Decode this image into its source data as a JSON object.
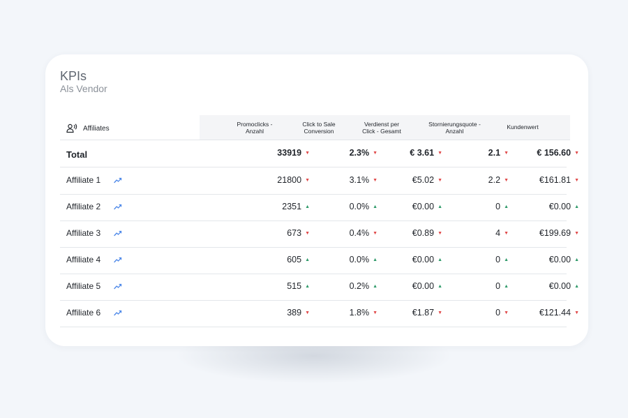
{
  "panel": {
    "title": "KPIs",
    "subtitle": "Als Vendor"
  },
  "table": {
    "first_column_label": "Affiliates",
    "columns": [
      {
        "line1": "Promoclicks -",
        "line2": "Anzahl"
      },
      {
        "line1": "Click to Sale",
        "line2": "Conversion"
      },
      {
        "line1": "Verdienst per",
        "line2": "Click - Gesamt"
      },
      {
        "line1": "Stornierungsquote -",
        "line2": "Anzahl"
      },
      {
        "line1": "Kundenwert",
        "line2": ""
      }
    ],
    "rows": [
      {
        "name": "Total",
        "total": true,
        "cells": [
          {
            "value": "33919",
            "trend": "down"
          },
          {
            "value": "2.3%",
            "trend": "down"
          },
          {
            "value": "€ 3.61",
            "trend": "down"
          },
          {
            "value": "2.1",
            "trend": "down"
          },
          {
            "value": "€ 156.60",
            "trend": "down"
          }
        ]
      },
      {
        "name": "Affiliate 1",
        "cells": [
          {
            "value": "21800",
            "trend": "down"
          },
          {
            "value": "3.1%",
            "trend": "down"
          },
          {
            "value": "€5.02",
            "trend": "down"
          },
          {
            "value": "2.2",
            "trend": "down"
          },
          {
            "value": "€161.81",
            "trend": "down"
          }
        ]
      },
      {
        "name": "Affiliate 2",
        "cells": [
          {
            "value": "2351",
            "trend": "up"
          },
          {
            "value": "0.0%",
            "trend": "up"
          },
          {
            "value": "€0.00",
            "trend": "up"
          },
          {
            "value": "0",
            "trend": "up"
          },
          {
            "value": "€0.00",
            "trend": "up"
          }
        ]
      },
      {
        "name": "Affiliate 3",
        "cells": [
          {
            "value": "673",
            "trend": "down"
          },
          {
            "value": "0.4%",
            "trend": "down"
          },
          {
            "value": "€0.89",
            "trend": "down"
          },
          {
            "value": "4",
            "trend": "down"
          },
          {
            "value": "€199.69",
            "trend": "down"
          }
        ]
      },
      {
        "name": "Affiliate 4",
        "cells": [
          {
            "value": "605",
            "trend": "up"
          },
          {
            "value": "0.0%",
            "trend": "up"
          },
          {
            "value": "€0.00",
            "trend": "up"
          },
          {
            "value": "0",
            "trend": "up"
          },
          {
            "value": "€0.00",
            "trend": "up"
          }
        ]
      },
      {
        "name": "Affiliate 5",
        "cells": [
          {
            "value": "515",
            "trend": "up"
          },
          {
            "value": "0.2%",
            "trend": "up"
          },
          {
            "value": "€0.00",
            "trend": "up"
          },
          {
            "value": "0",
            "trend": "up"
          },
          {
            "value": "€0.00",
            "trend": "up"
          }
        ]
      },
      {
        "name": "Affiliate 6",
        "cells": [
          {
            "value": "389",
            "trend": "down"
          },
          {
            "value": "1.8%",
            "trend": "down"
          },
          {
            "value": "€1.87",
            "trend": "down"
          },
          {
            "value": "0",
            "trend": "down"
          },
          {
            "value": "€121.44",
            "trend": "down"
          }
        ]
      }
    ]
  },
  "icons": {
    "header": "affiliates-icon",
    "row": "trend-chart-icon",
    "up": "arrow-up-icon",
    "down": "arrow-down-icon"
  },
  "colors": {
    "accent": "#4a86e8",
    "trend_down": "#e04848",
    "trend_up": "#2f9a6a"
  }
}
